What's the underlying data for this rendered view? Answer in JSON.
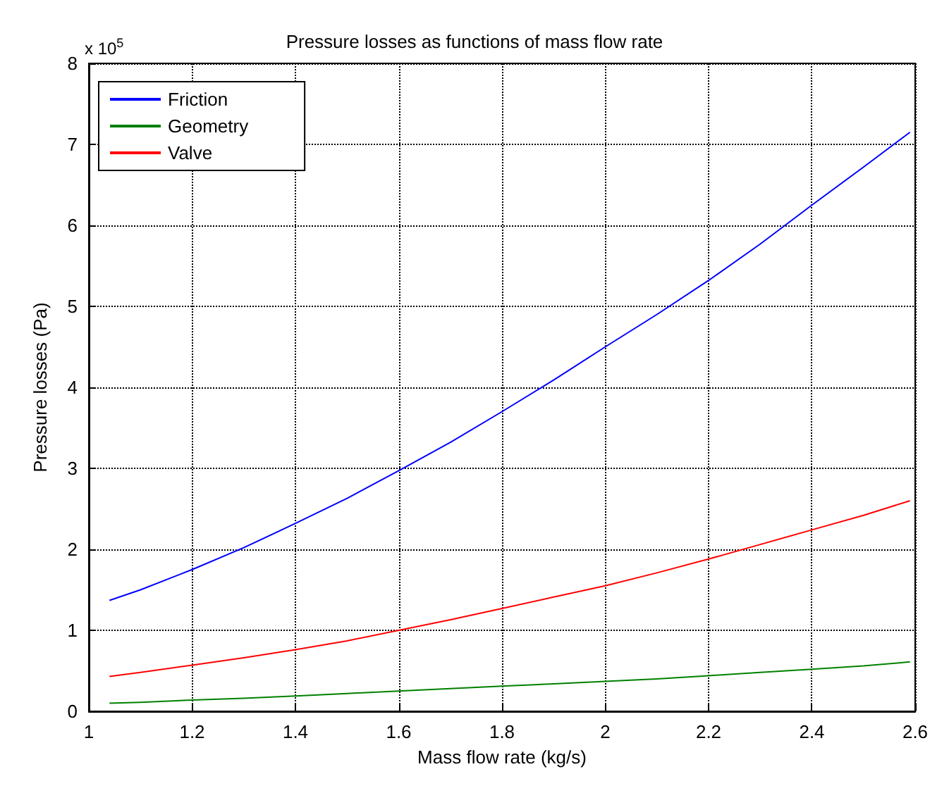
{
  "chart_data": {
    "type": "line",
    "title": "Pressure losses as functions of mass flow rate",
    "xlabel": "Mass flow rate (kg/s)",
    "ylabel": "Pressure losses (Pa)",
    "annotations": [
      "x 10$^{5}$"
    ],
    "x": [
      1.04,
      1.1,
      1.2,
      1.3,
      1.4,
      1.5,
      1.6,
      1.7,
      1.8,
      1.9,
      2.0,
      2.1,
      2.2,
      2.3,
      2.4,
      2.5,
      2.59
    ],
    "series": [
      {
        "name": "Friction",
        "color": "#0000ff",
        "values": [
          1.37,
          1.5,
          1.75,
          2.02,
          2.32,
          2.63,
          2.97,
          3.32,
          3.7,
          4.09,
          4.5,
          4.9,
          5.32,
          5.77,
          6.25,
          6.72,
          7.15
        ]
      },
      {
        "name": "Geometry",
        "color": "#008000",
        "values": [
          0.1,
          0.11,
          0.14,
          0.16,
          0.19,
          0.22,
          0.25,
          0.28,
          0.31,
          0.34,
          0.37,
          0.4,
          0.44,
          0.48,
          0.52,
          0.56,
          0.61
        ]
      },
      {
        "name": "Valve",
        "color": "#ff0000",
        "values": [
          0.43,
          0.48,
          0.57,
          0.66,
          0.76,
          0.87,
          1.0,
          1.13,
          1.27,
          1.41,
          1.55,
          1.71,
          1.88,
          2.06,
          2.24,
          2.42,
          2.6
        ]
      }
    ],
    "xlim": [
      1,
      2.6
    ],
    "xticks": [
      1,
      1.2,
      1.4,
      1.6,
      1.8,
      2,
      2.2,
      2.4,
      2.6
    ],
    "ylim": [
      0,
      8
    ],
    "yticks": [
      0,
      1,
      2,
      3,
      4,
      5,
      6,
      7,
      8
    ],
    "grid": true,
    "legend": "top left",
    "marker": "none",
    "line_style": "solid"
  }
}
